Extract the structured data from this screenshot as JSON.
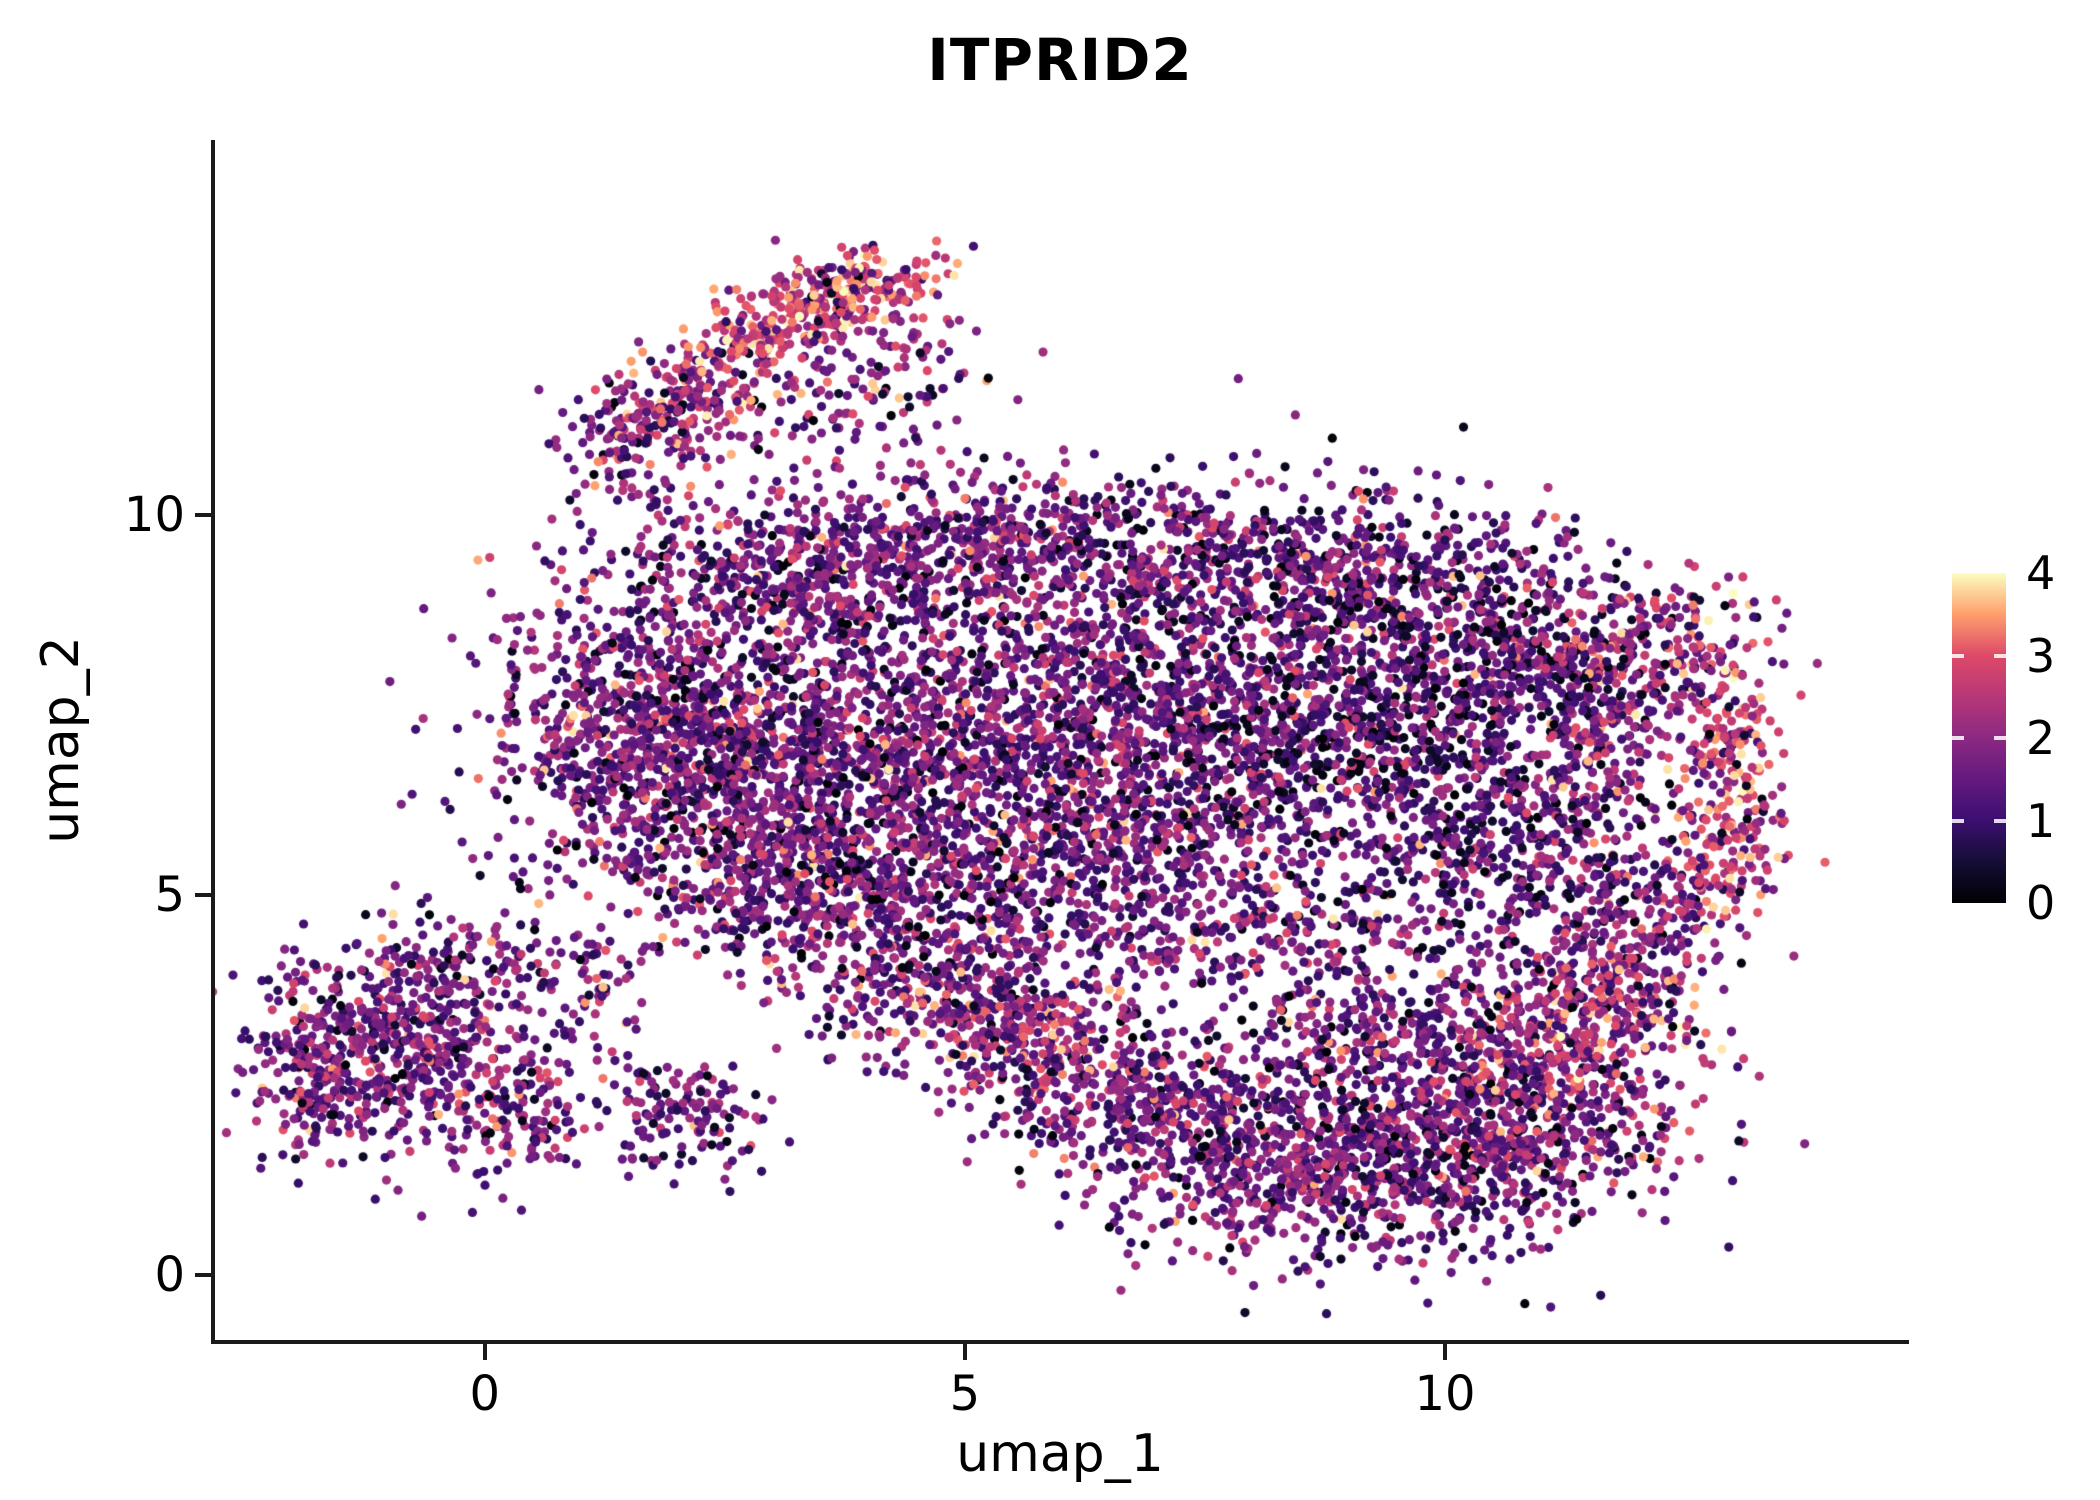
{
  "figure": {
    "background": "#FFFFFF"
  },
  "chart_data": {
    "type": "scatter",
    "title": "ITPRID2",
    "xlabel": "umap_1",
    "ylabel": "umap_2",
    "xlim": [
      -2.81,
      14.79
    ],
    "ylim": [
      -0.86,
      14.93
    ],
    "xticks": [
      0,
      5,
      10
    ],
    "yticks": [
      0,
      5,
      10
    ],
    "grid": false,
    "legend_position": "colorbar-right",
    "point_radius_px": 4.6,
    "seed": 1337,
    "colormap_name": "magma",
    "colorbar": {
      "range": [
        0,
        4
      ],
      "ticks": [
        0,
        1,
        2,
        3,
        4
      ],
      "stops": [
        {
          "v": 0.0,
          "c": "#000004"
        },
        {
          "v": 0.5,
          "c": "#140e36"
        },
        {
          "v": 1.0,
          "c": "#3b0f70"
        },
        {
          "v": 1.5,
          "c": "#641a80"
        },
        {
          "v": 2.0,
          "c": "#8c2981"
        },
        {
          "v": 2.5,
          "c": "#b73779"
        },
        {
          "v": 3.0,
          "c": "#de4968"
        },
        {
          "v": 3.5,
          "c": "#fe9f6d"
        },
        {
          "v": 4.0,
          "c": "#fcfdbf"
        }
      ]
    },
    "expression_profiles": {
      "mixed": [
        [
          0.0,
          0.45,
          0.09
        ],
        [
          0.7,
          1.6,
          0.4
        ],
        [
          1.6,
          2.4,
          0.37
        ],
        [
          2.4,
          3.1,
          0.11
        ],
        [
          3.1,
          3.9,
          0.03
        ]
      ],
      "mixed_dark": [
        [
          0.0,
          0.45,
          0.16
        ],
        [
          0.7,
          1.6,
          0.42
        ],
        [
          1.6,
          2.4,
          0.3
        ],
        [
          2.4,
          3.1,
          0.1
        ],
        [
          3.1,
          3.9,
          0.02
        ]
      ],
      "dark_mixed": [
        [
          0.0,
          0.45,
          0.22
        ],
        [
          0.7,
          1.6,
          0.44
        ],
        [
          1.6,
          2.4,
          0.24
        ],
        [
          2.4,
          3.1,
          0.08
        ],
        [
          3.1,
          3.9,
          0.02
        ]
      ],
      "hot": [
        [
          0.0,
          0.45,
          0.04
        ],
        [
          0.7,
          1.6,
          0.1
        ],
        [
          1.6,
          2.4,
          0.2
        ],
        [
          2.4,
          3.2,
          0.46
        ],
        [
          3.2,
          4.0,
          0.2
        ]
      ],
      "hot_mixed": [
        [
          0.0,
          0.45,
          0.07
        ],
        [
          0.7,
          1.6,
          0.24
        ],
        [
          1.6,
          2.4,
          0.29
        ],
        [
          2.4,
          3.2,
          0.31
        ],
        [
          3.2,
          4.0,
          0.09
        ]
      ]
    },
    "clusters": [
      {
        "name": "top-arm-core",
        "cx": 3.1,
        "cy": 12.5,
        "sx": 0.75,
        "sy": 0.28,
        "rot": 35,
        "n": 280,
        "profile": "hot"
      },
      {
        "name": "top-arm-tip",
        "cx": 3.9,
        "cy": 13.0,
        "sx": 0.45,
        "sy": 0.22,
        "rot": 10,
        "n": 120,
        "profile": "hot"
      },
      {
        "name": "top-arm-mid",
        "cx": 2.05,
        "cy": 11.35,
        "sx": 0.5,
        "sy": 0.3,
        "rot": 35,
        "n": 170,
        "profile": "hot_mixed"
      },
      {
        "name": "top-arm-stem",
        "cx": 1.35,
        "cy": 10.95,
        "sx": 0.3,
        "sy": 0.4,
        "rot": 0,
        "n": 80,
        "profile": "mixed"
      },
      {
        "name": "top-arm-scatter",
        "cx": 3.6,
        "cy": 11.4,
        "sx": 0.7,
        "sy": 0.55,
        "rot": 0,
        "n": 110,
        "profile": "mixed"
      },
      {
        "name": "top-arm-right-lobe",
        "cx": 4.45,
        "cy": 12.3,
        "sx": 0.3,
        "sy": 0.6,
        "rot": 0,
        "n": 60,
        "profile": "hot_mixed"
      },
      {
        "name": "main-top-left",
        "cx": 3.3,
        "cy": 9.2,
        "sx": 0.95,
        "sy": 0.6,
        "rot": 0,
        "n": 520,
        "profile": "mixed"
      },
      {
        "name": "main-top-midleft",
        "cx": 5.2,
        "cy": 9.6,
        "sx": 0.9,
        "sy": 0.5,
        "rot": 0,
        "n": 320,
        "profile": "mixed"
      },
      {
        "name": "main-top-mid",
        "cx": 7.3,
        "cy": 9.5,
        "sx": 1.1,
        "sy": 0.5,
        "rot": 0,
        "n": 380,
        "profile": "mixed_dark"
      },
      {
        "name": "main-top-right",
        "cx": 9.2,
        "cy": 9.3,
        "sx": 0.9,
        "sy": 0.5,
        "rot": 0,
        "n": 300,
        "profile": "mixed_dark"
      },
      {
        "name": "main-left-edge",
        "cx": 1.6,
        "cy": 7.2,
        "sx": 0.8,
        "sy": 1.0,
        "rot": 0,
        "n": 800,
        "profile": "mixed"
      },
      {
        "name": "main-left",
        "cx": 2.9,
        "cy": 6.4,
        "sx": 0.9,
        "sy": 1.0,
        "rot": 0,
        "n": 800,
        "profile": "mixed"
      },
      {
        "name": "main-center-left",
        "cx": 4.9,
        "cy": 7.0,
        "sx": 1.2,
        "sy": 1.2,
        "rot": 0,
        "n": 1100,
        "profile": "mixed"
      },
      {
        "name": "main-center",
        "cx": 7.2,
        "cy": 7.2,
        "sx": 1.2,
        "sy": 1.2,
        "rot": 0,
        "n": 1200,
        "profile": "mixed_dark"
      },
      {
        "name": "main-right",
        "cx": 9.5,
        "cy": 7.5,
        "sx": 1.1,
        "sy": 1.1,
        "rot": 0,
        "n": 1000,
        "profile": "dark_mixed"
      },
      {
        "name": "main-right-shoulder",
        "cx": 10.9,
        "cy": 8.3,
        "sx": 0.7,
        "sy": 0.7,
        "rot": 0,
        "n": 300,
        "profile": "mixed_dark"
      },
      {
        "name": "main-rim-inner",
        "cx": 11.7,
        "cy": 7.2,
        "sx": 0.5,
        "sy": 0.8,
        "rot": 0,
        "n": 200,
        "profile": "mixed"
      },
      {
        "name": "main-lower-right",
        "cx": 10.8,
        "cy": 5.6,
        "sx": 0.8,
        "sy": 0.7,
        "rot": 0,
        "n": 350,
        "profile": "mixed_dark"
      },
      {
        "name": "main-lower-edge",
        "cx": 5.9,
        "cy": 5.3,
        "sx": 1.3,
        "sy": 0.6,
        "rot": 0,
        "n": 500,
        "profile": "mixed"
      },
      {
        "name": "main-lower-left",
        "cx": 3.4,
        "cy": 5.0,
        "sx": 0.8,
        "sy": 0.5,
        "rot": 0,
        "n": 280,
        "profile": "mixed"
      },
      {
        "name": "rim-top",
        "cx": 12.35,
        "cy": 8.3,
        "sx": 0.5,
        "sy": 0.45,
        "rot": 0,
        "n": 130,
        "profile": "hot_mixed"
      },
      {
        "name": "rim-right-upper",
        "cx": 12.95,
        "cy": 7.0,
        "sx": 0.3,
        "sy": 0.6,
        "rot": 0,
        "n": 140,
        "profile": "hot"
      },
      {
        "name": "rim-right-lower",
        "cx": 13.05,
        "cy": 5.9,
        "sx": 0.25,
        "sy": 0.45,
        "rot": 0,
        "n": 90,
        "profile": "hot"
      },
      {
        "name": "rim-bottom",
        "cx": 12.4,
        "cy": 5.0,
        "sx": 0.45,
        "sy": 0.45,
        "rot": 0,
        "n": 110,
        "profile": "hot_mixed"
      },
      {
        "name": "rim-tail",
        "cx": 11.9,
        "cy": 4.2,
        "sx": 0.5,
        "sy": 0.45,
        "rot": 0,
        "n": 140,
        "profile": "mixed"
      },
      {
        "name": "bottomleft-core",
        "cx": -0.9,
        "cy": 3.0,
        "sx": 0.75,
        "sy": 0.7,
        "rot": 0,
        "n": 600,
        "profile": "mixed"
      },
      {
        "name": "bottomleft-edge",
        "cx": -1.75,
        "cy": 2.6,
        "sx": 0.25,
        "sy": 0.55,
        "rot": 0,
        "n": 100,
        "profile": "mixed"
      },
      {
        "name": "bottomleft-lobe",
        "cx": 0.3,
        "cy": 2.2,
        "sx": 0.4,
        "sy": 0.45,
        "rot": 0,
        "n": 120,
        "profile": "mixed"
      },
      {
        "name": "bottomleft-top",
        "cx": -0.2,
        "cy": 4.1,
        "sx": 0.45,
        "sy": 0.35,
        "rot": 0,
        "n": 90,
        "profile": "mixed"
      },
      {
        "name": "bottomleft-trail",
        "cx": 0.95,
        "cy": 3.9,
        "sx": 0.4,
        "sy": 0.35,
        "rot": 0,
        "n": 60,
        "profile": "mixed"
      },
      {
        "name": "small-mid-cluster",
        "cx": 2.1,
        "cy": 2.1,
        "sx": 0.5,
        "sy": 0.4,
        "rot": 0,
        "n": 140,
        "profile": "mixed"
      },
      {
        "name": "arc-left",
        "cx": 4.6,
        "cy": 3.9,
        "sx": 0.8,
        "sy": 0.55,
        "rot": 0,
        "n": 300,
        "profile": "mixed"
      },
      {
        "name": "arc-hot-streak",
        "cx": 5.6,
        "cy": 3.0,
        "sx": 0.8,
        "sy": 0.45,
        "rot": -25,
        "n": 300,
        "profile": "hot_mixed"
      },
      {
        "name": "arc-mid",
        "cx": 6.9,
        "cy": 2.3,
        "sx": 1.0,
        "sy": 0.55,
        "rot": -15,
        "n": 420,
        "profile": "mixed"
      },
      {
        "name": "arc-bottom",
        "cx": 8.6,
        "cy": 1.4,
        "sx": 1.2,
        "sy": 0.65,
        "rot": 0,
        "n": 650,
        "profile": "mixed"
      },
      {
        "name": "arc-bottom-right",
        "cx": 10.3,
        "cy": 1.7,
        "sx": 1.0,
        "sy": 0.75,
        "rot": 0,
        "n": 600,
        "profile": "mixed_dark"
      },
      {
        "name": "arc-right-hot",
        "cx": 11.15,
        "cy": 2.9,
        "sx": 0.75,
        "sy": 0.75,
        "rot": 0,
        "n": 420,
        "profile": "hot_mixed"
      },
      {
        "name": "arc-inner",
        "cx": 9.6,
        "cy": 3.2,
        "sx": 1.0,
        "sy": 0.6,
        "rot": 0,
        "n": 380,
        "profile": "mixed"
      },
      {
        "name": "arc-right-tip",
        "cx": 12.0,
        "cy": 3.6,
        "sx": 0.4,
        "sy": 0.45,
        "rot": 0,
        "n": 90,
        "profile": "hot_mixed"
      },
      {
        "name": "gap-scatter",
        "cx": 7.9,
        "cy": 4.4,
        "sx": 1.2,
        "sy": 0.45,
        "rot": 0,
        "n": 220,
        "profile": "mixed"
      }
    ],
    "note": "UMAP feature plot of ITPRID2 expression (~14,000 cells); points are procedurally generated from per-cluster summaries (center, spread, count, expression profile) estimated from the screenshot."
  }
}
